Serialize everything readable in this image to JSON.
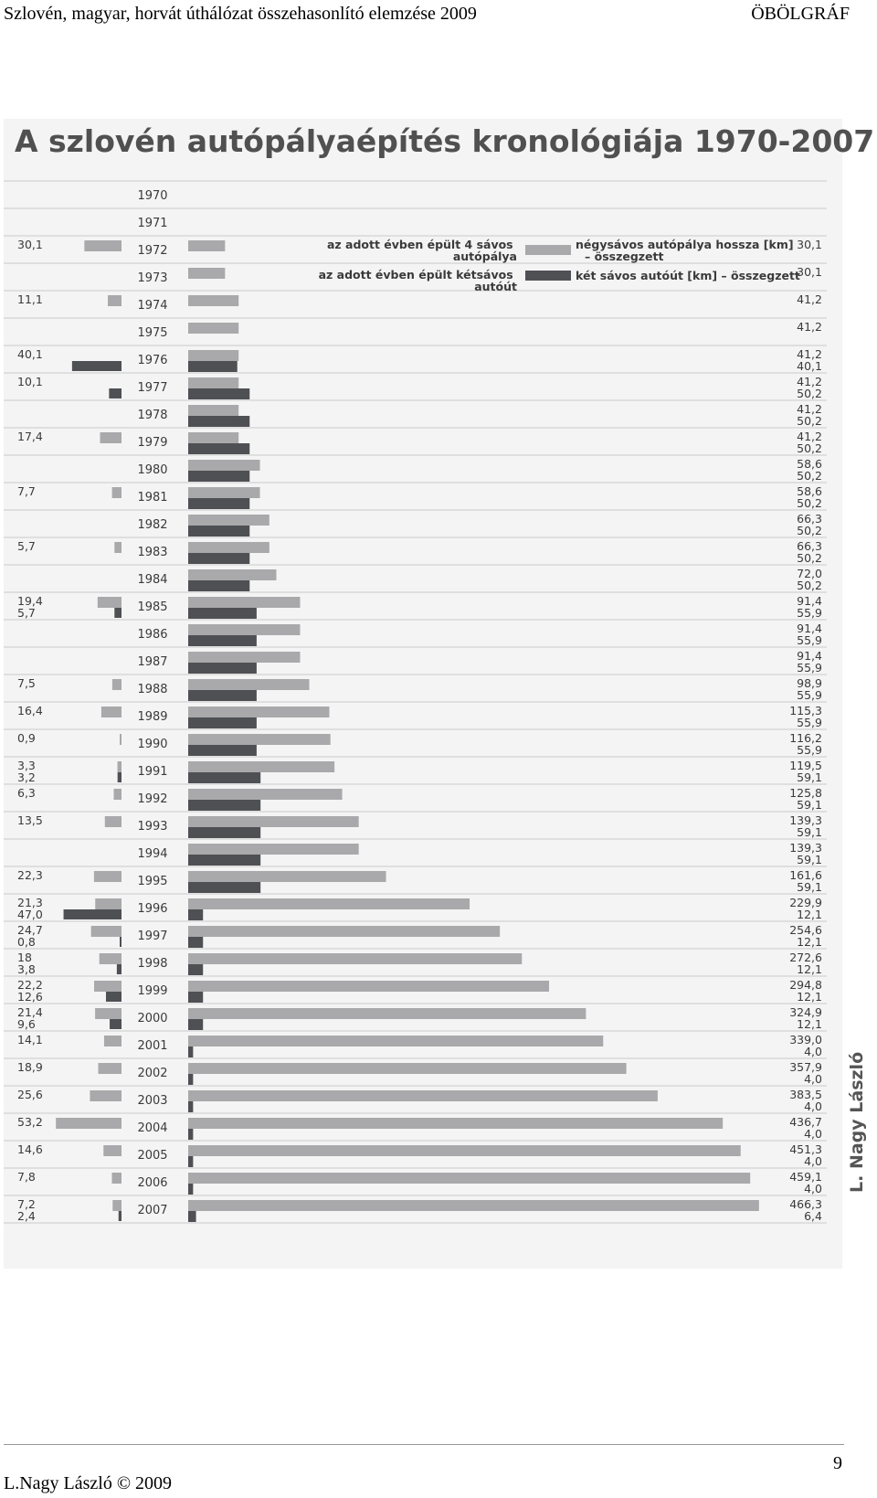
{
  "header": {
    "left": "Szlovén, magyar, horvát úthálózat összehasonlító elemzése 2009",
    "right": "ÖBÖLGRÁF"
  },
  "footer": {
    "author": "L.Nagy László © 2009",
    "page_number": "9"
  },
  "colors": {
    "four_lane": "#a9a9ab",
    "two_lane": "#4e5054",
    "grid": "#d2d2d2",
    "text": "#3a3a3a"
  },
  "chart_data": {
    "type": "bar",
    "title": "A szlovén autópályaépítés kronológiája 1970-2007",
    "credit": "L. Nagy László",
    "legend": {
      "annual_four_lane": "az adott évben épült 4 sávos autópálya",
      "annual_two_lane": "az adott évben épült kétsávos autóút",
      "cumulative_four_lane": "négysávos autópálya hossza [km] – összegzett",
      "cumulative_two_lane": "két sávos autóút [km] – összegzett"
    },
    "years": [
      "1970",
      "1971",
      "1972",
      "1973",
      "1974",
      "1975",
      "1976",
      "1977",
      "1978",
      "1979",
      "1980",
      "1981",
      "1982",
      "1983",
      "1984",
      "1985",
      "1986",
      "1987",
      "1988",
      "1989",
      "1990",
      "1991",
      "1992",
      "1993",
      "1994",
      "1995",
      "1996",
      "1997",
      "1998",
      "1999",
      "2000",
      "2001",
      "2002",
      "2003",
      "2004",
      "2005",
      "2006",
      "2007"
    ],
    "annual_four_lane": [
      null,
      null,
      30.1,
      null,
      11.1,
      null,
      null,
      null,
      null,
      17.4,
      null,
      7.7,
      null,
      5.7,
      null,
      19.4,
      null,
      null,
      7.5,
      16.4,
      0.9,
      3.3,
      6.3,
      13.5,
      null,
      22.3,
      21.3,
      24.7,
      18,
      22.2,
      21.4,
      14.1,
      18.9,
      25.6,
      53.2,
      14.6,
      7.8,
      7.2
    ],
    "annual_two_lane": [
      null,
      null,
      null,
      null,
      null,
      null,
      40.1,
      10.1,
      null,
      null,
      null,
      null,
      null,
      null,
      null,
      5.7,
      null,
      null,
      null,
      null,
      null,
      3.2,
      null,
      null,
      null,
      null,
      47.0,
      0.8,
      3.8,
      12.6,
      9.6,
      null,
      null,
      null,
      null,
      null,
      null,
      2.4
    ],
    "annual_four_lane_labels": [
      "",
      "",
      "30,1",
      "",
      "11,1",
      "",
      "",
      "",
      "",
      "17,4",
      "",
      "7,7",
      "",
      "5,7",
      "",
      "19,4",
      "",
      "",
      "7,5",
      "16,4",
      "0,9",
      "3,3",
      "6,3",
      "13,5",
      "",
      "22,3",
      "21,3",
      "24,7",
      "18",
      "22,2",
      "21,4",
      "14,1",
      "18,9",
      "25,6",
      "53,2",
      "14,6",
      "7,8",
      "7,2"
    ],
    "annual_two_lane_labels": [
      "",
      "",
      "",
      "",
      "",
      "",
      "40,1",
      "10,1",
      "",
      "",
      "",
      "",
      "",
      "",
      "",
      "5,7",
      "",
      "",
      "",
      "",
      "",
      "3,2",
      "",
      "",
      "",
      "",
      "47,0",
      "0,8",
      "3,8",
      "12,6",
      "9,6",
      "",
      "",
      "",
      "",
      "",
      "",
      "2,4"
    ],
    "cumulative_four_lane": [
      null,
      null,
      30.1,
      30.1,
      41.2,
      41.2,
      41.2,
      41.2,
      41.2,
      41.2,
      58.6,
      58.6,
      66.3,
      66.3,
      72.0,
      91.4,
      91.4,
      91.4,
      98.9,
      115.3,
      116.2,
      119.5,
      125.8,
      139.3,
      139.3,
      161.6,
      229.9,
      254.6,
      272.6,
      294.8,
      324.9,
      339.0,
      357.9,
      383.5,
      436.7,
      451.3,
      459.1,
      466.3
    ],
    "cumulative_two_lane": [
      null,
      null,
      null,
      null,
      null,
      null,
      40.1,
      50.2,
      50.2,
      50.2,
      50.2,
      50.2,
      50.2,
      50.2,
      50.2,
      55.9,
      55.9,
      55.9,
      55.9,
      55.9,
      55.9,
      59.1,
      59.1,
      59.1,
      59.1,
      59.1,
      12.1,
      12.1,
      12.1,
      12.1,
      12.1,
      4.0,
      4.0,
      4.0,
      4.0,
      4.0,
      4.0,
      6.4
    ],
    "cumulative_four_lane_labels": [
      "",
      "",
      "30,1",
      "30,1",
      "41,2",
      "41,2",
      "41,2",
      "41,2",
      "41,2",
      "41,2",
      "58,6",
      "58,6",
      "66,3",
      "66,3",
      "72,0",
      "91,4",
      "91,4",
      "91,4",
      "98,9",
      "115,3",
      "116,2",
      "119,5",
      "125,8",
      "139,3",
      "139,3",
      "161,6",
      "229,9",
      "254,6",
      "272,6",
      "294,8",
      "324,9",
      "339,0",
      "357,9",
      "383,5",
      "436,7",
      "451,3",
      "459,1",
      "466,3"
    ],
    "cumulative_two_lane_labels": [
      "",
      "",
      "",
      "",
      "",
      "",
      "40,1",
      "50,2",
      "50,2",
      "50,2",
      "50,2",
      "50,2",
      "50,2",
      "50,2",
      "50,2",
      "55,9",
      "55,9",
      "55,9",
      "55,9",
      "55,9",
      "55,9",
      "59,1",
      "59,1",
      "59,1",
      "59,1",
      "59,1",
      "12,1",
      "12,1",
      "12,1",
      "12,1",
      "12,1",
      "4,0",
      "4,0",
      "4,0",
      "4,0",
      "4,0",
      "4,0",
      "6,4"
    ]
  }
}
